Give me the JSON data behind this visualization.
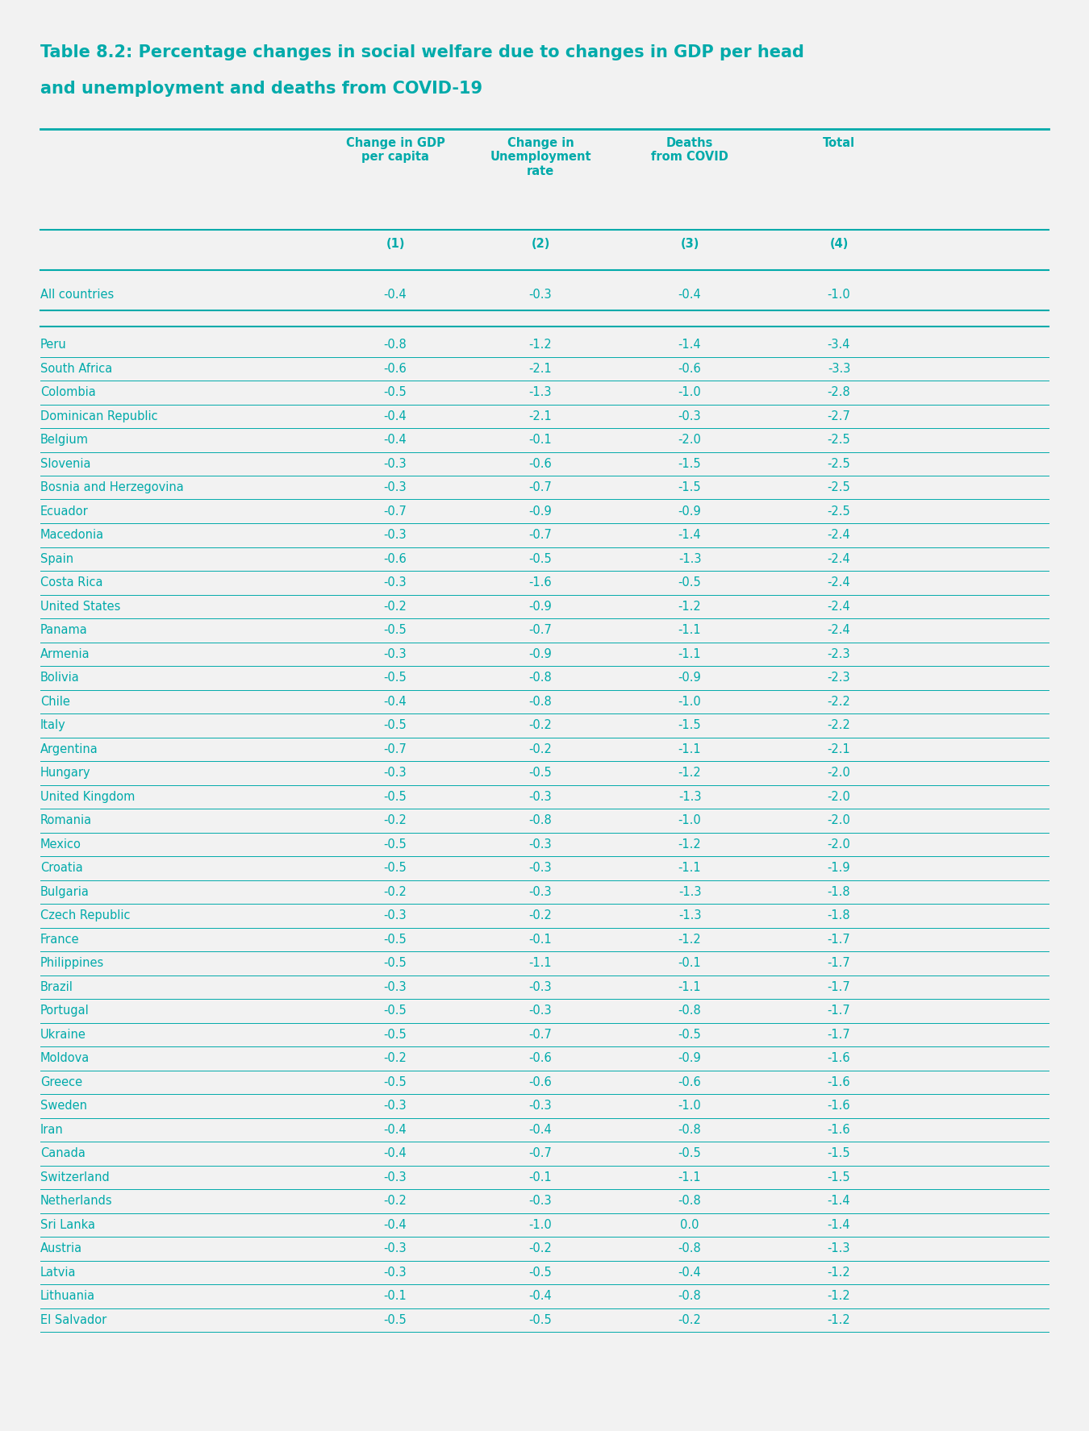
{
  "title_line1": "Table 8.2: Percentage changes in social welfare due to changes in GDP per head",
  "title_line2": "and unemployment and deaths from COVID-19",
  "title_color": "#00AAAA",
  "background_color": "#F2F2F2",
  "header_cols": [
    "Change in GDP\nper capita",
    "Change in\nUnemployment\nrate",
    "Deaths\nfrom COVID",
    "Total"
  ],
  "header_nums": [
    "(1)",
    "(2)",
    "(3)",
    "(4)"
  ],
  "teal": "#00AAAA",
  "special_row": [
    "All countries",
    "-0.4",
    "-0.3",
    "-0.4",
    "-1.0"
  ],
  "rows": [
    [
      "Peru",
      "-0.8",
      "-1.2",
      "-1.4",
      "-3.4"
    ],
    [
      "South Africa",
      "-0.6",
      "-2.1",
      "-0.6",
      "-3.3"
    ],
    [
      "Colombia",
      "-0.5",
      "-1.3",
      "-1.0",
      "-2.8"
    ],
    [
      "Dominican Republic",
      "-0.4",
      "-2.1",
      "-0.3",
      "-2.7"
    ],
    [
      "Belgium",
      "-0.4",
      "-0.1",
      "-2.0",
      "-2.5"
    ],
    [
      "Slovenia",
      "-0.3",
      "-0.6",
      "-1.5",
      "-2.5"
    ],
    [
      "Bosnia and Herzegovina",
      "-0.3",
      "-0.7",
      "-1.5",
      "-2.5"
    ],
    [
      "Ecuador",
      "-0.7",
      "-0.9",
      "-0.9",
      "-2.5"
    ],
    [
      "Macedonia",
      "-0.3",
      "-0.7",
      "-1.4",
      "-2.4"
    ],
    [
      "Spain",
      "-0.6",
      "-0.5",
      "-1.3",
      "-2.4"
    ],
    [
      "Costa Rica",
      "-0.3",
      "-1.6",
      "-0.5",
      "-2.4"
    ],
    [
      "United States",
      "-0.2",
      "-0.9",
      "-1.2",
      "-2.4"
    ],
    [
      "Panama",
      "-0.5",
      "-0.7",
      "-1.1",
      "-2.4"
    ],
    [
      "Armenia",
      "-0.3",
      "-0.9",
      "-1.1",
      "-2.3"
    ],
    [
      "Bolivia",
      "-0.5",
      "-0.8",
      "-0.9",
      "-2.3"
    ],
    [
      "Chile",
      "-0.4",
      "-0.8",
      "-1.0",
      "-2.2"
    ],
    [
      "Italy",
      "-0.5",
      "-0.2",
      "-1.5",
      "-2.2"
    ],
    [
      "Argentina",
      "-0.7",
      "-0.2",
      "-1.1",
      "-2.1"
    ],
    [
      "Hungary",
      "-0.3",
      "-0.5",
      "-1.2",
      "-2.0"
    ],
    [
      "United Kingdom",
      "-0.5",
      "-0.3",
      "-1.3",
      "-2.0"
    ],
    [
      "Romania",
      "-0.2",
      "-0.8",
      "-1.0",
      "-2.0"
    ],
    [
      "Mexico",
      "-0.5",
      "-0.3",
      "-1.2",
      "-2.0"
    ],
    [
      "Croatia",
      "-0.5",
      "-0.3",
      "-1.1",
      "-1.9"
    ],
    [
      "Bulgaria",
      "-0.2",
      "-0.3",
      "-1.3",
      "-1.8"
    ],
    [
      "Czech Republic",
      "-0.3",
      "-0.2",
      "-1.3",
      "-1.8"
    ],
    [
      "France",
      "-0.5",
      "-0.1",
      "-1.2",
      "-1.7"
    ],
    [
      "Philippines",
      "-0.5",
      "-1.1",
      "-0.1",
      "-1.7"
    ],
    [
      "Brazil",
      "-0.3",
      "-0.3",
      "-1.1",
      "-1.7"
    ],
    [
      "Portugal",
      "-0.5",
      "-0.3",
      "-0.8",
      "-1.7"
    ],
    [
      "Ukraine",
      "-0.5",
      "-0.7",
      "-0.5",
      "-1.7"
    ],
    [
      "Moldova",
      "-0.2",
      "-0.6",
      "-0.9",
      "-1.6"
    ],
    [
      "Greece",
      "-0.5",
      "-0.6",
      "-0.6",
      "-1.6"
    ],
    [
      "Sweden",
      "-0.3",
      "-0.3",
      "-1.0",
      "-1.6"
    ],
    [
      "Iran",
      "-0.4",
      "-0.4",
      "-0.8",
      "-1.6"
    ],
    [
      "Canada",
      "-0.4",
      "-0.7",
      "-0.5",
      "-1.5"
    ],
    [
      "Switzerland",
      "-0.3",
      "-0.1",
      "-1.1",
      "-1.5"
    ],
    [
      "Netherlands",
      "-0.2",
      "-0.3",
      "-0.8",
      "-1.4"
    ],
    [
      "Sri Lanka",
      "-0.4",
      "-1.0",
      "0.0",
      "-1.4"
    ],
    [
      "Austria",
      "-0.3",
      "-0.2",
      "-0.8",
      "-1.3"
    ],
    [
      "Latvia",
      "-0.3",
      "-0.5",
      "-0.4",
      "-1.2"
    ],
    [
      "Lithuania",
      "-0.1",
      "-0.4",
      "-0.8",
      "-1.2"
    ],
    [
      "El Salvador",
      "-0.5",
      "-0.5",
      "-0.2",
      "-1.2"
    ]
  ],
  "fig_width": 13.5,
  "fig_height": 17.75,
  "dpi": 100
}
